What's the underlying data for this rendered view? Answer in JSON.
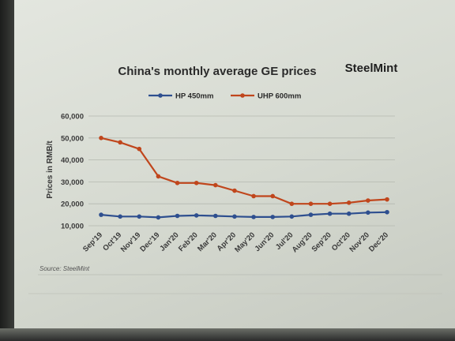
{
  "brand": "SteelMint",
  "source": "Source: SteelMint",
  "chart_data": {
    "type": "line",
    "title": "China's monthly average GE prices",
    "ylabel": "Prices in RMB/t",
    "xlabel": "",
    "ylim": [
      10000,
      60000
    ],
    "yticks": [
      10000,
      20000,
      30000,
      40000,
      50000,
      60000
    ],
    "ytick_labels": [
      "10,000",
      "20,000",
      "30,000",
      "40,000",
      "50,000",
      "60,000"
    ],
    "grid": true,
    "legend_position": "top",
    "categories": [
      "Sep'19",
      "Oct'19",
      "Nov'19",
      "Dec'19",
      "Jan'20",
      "Feb'20",
      "Mar'20",
      "Apr'20",
      "May'20",
      "Jun'20",
      "Jul'20",
      "Aug'20",
      "Sep'20",
      "Oct'20",
      "Nov'20",
      "Dec'20"
    ],
    "series": [
      {
        "name": "HP 450mm",
        "color": "#2e4f8f",
        "values": [
          15000,
          14200,
          14200,
          13800,
          14500,
          14700,
          14500,
          14200,
          14000,
          14000,
          14200,
          15000,
          15500,
          15500,
          16000,
          16200
        ]
      },
      {
        "name": "UHP 600mm",
        "color": "#c0461c",
        "values": [
          50000,
          48000,
          45000,
          32500,
          29500,
          29500,
          28500,
          26000,
          23500,
          23500,
          20000,
          20000,
          20000,
          20500,
          21500,
          22000
        ]
      }
    ]
  }
}
